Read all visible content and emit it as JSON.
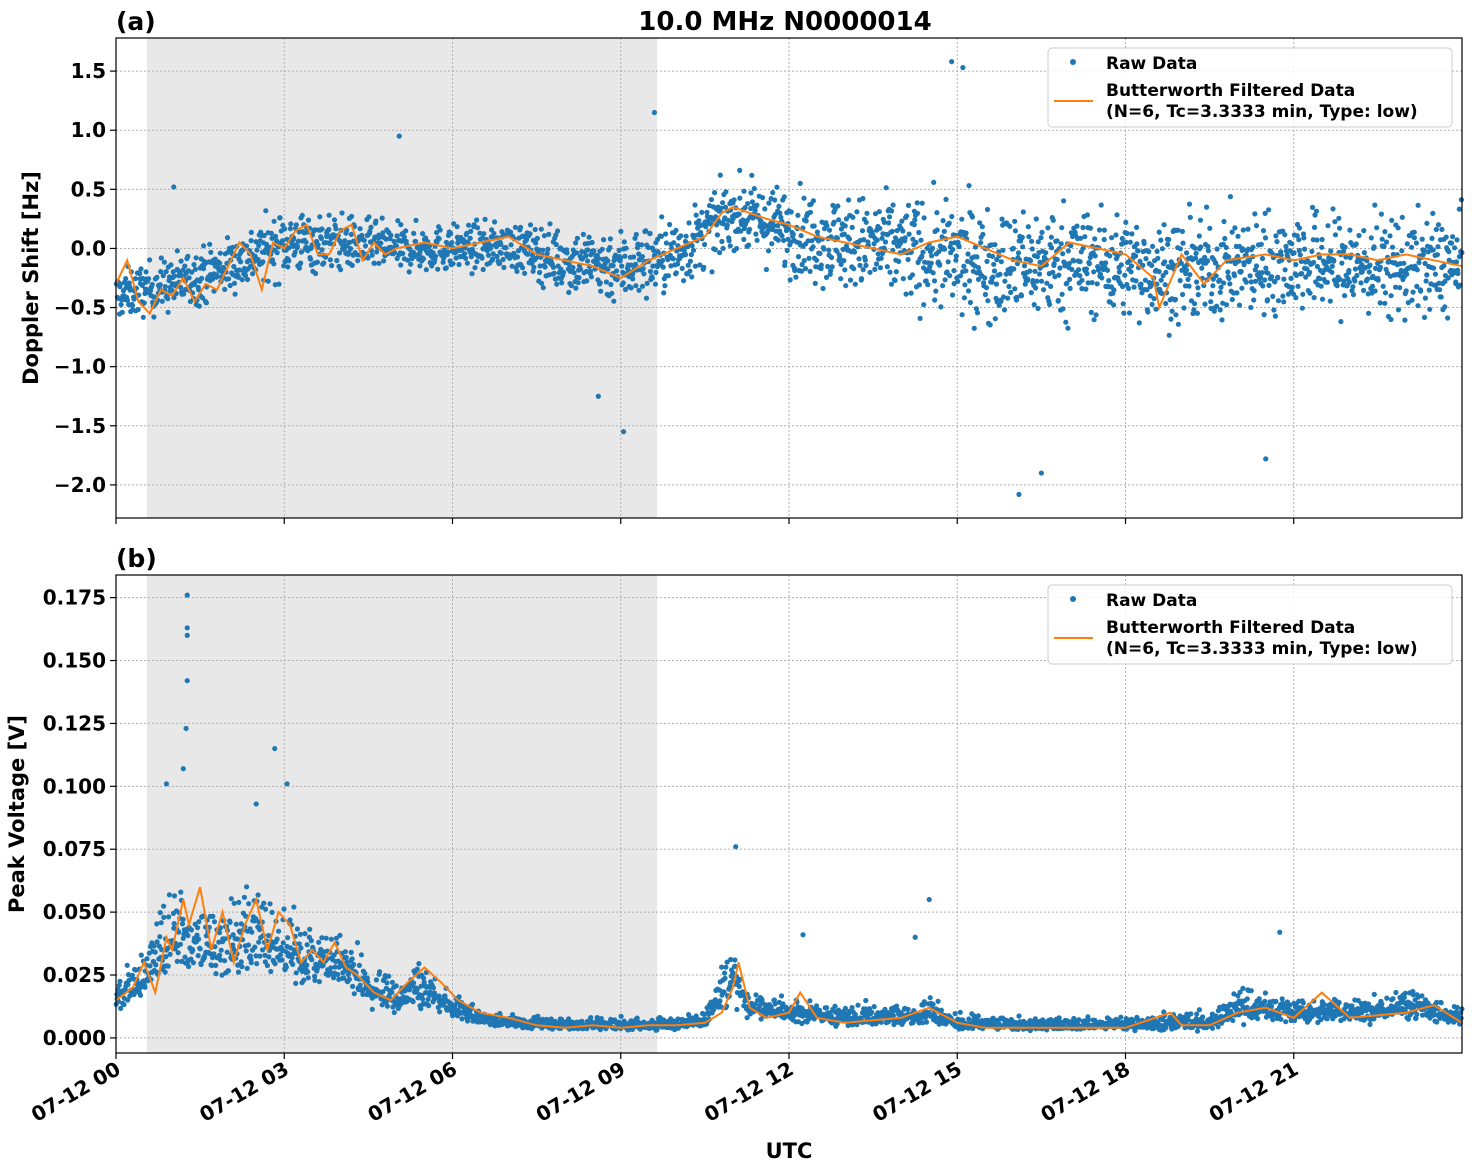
{
  "figure": {
    "title": "10.0 MHz N0000014",
    "xlabel": "UTC",
    "colors": {
      "raw": "#1f77b4",
      "filtered": "#ff7f0e",
      "shade": "#e8e8e8"
    }
  },
  "chart_data": [
    {
      "type": "scatter",
      "panel_label": "(a)",
      "title": "10.0 MHz N0000014",
      "ylabel": "Doppler Shift [Hz]",
      "xlabel": "",
      "xlim": [
        0,
        24
      ],
      "ylim": [
        -2.28,
        1.78
      ],
      "grid": true,
      "legend_placement": "top-right",
      "shaded_x_range": [
        0.55,
        9.65
      ],
      "yticks": [
        1.5,
        1.0,
        0.5,
        0.0,
        -0.5,
        -1.0,
        -1.5,
        -2.0
      ],
      "ytick_labels": [
        "1.5",
        "1.0",
        "0.5",
        "0.0",
        "−0.5",
        "−1.0",
        "−1.5",
        "−2.0"
      ],
      "series": [
        {
          "name": "Raw Data",
          "kind": "scatter",
          "centerline_x": [
            0,
            1,
            2,
            3,
            4,
            5,
            6,
            7,
            8,
            9,
            10,
            11,
            12,
            13,
            14,
            15,
            16,
            17,
            18,
            19,
            20,
            21,
            22,
            23,
            24
          ],
          "centerline_y": [
            -0.4,
            -0.3,
            -0.15,
            0.05,
            0.05,
            0.0,
            0.0,
            0.02,
            -0.1,
            -0.15,
            -0.05,
            0.3,
            0.15,
            0.05,
            0.0,
            -0.1,
            -0.15,
            -0.1,
            -0.15,
            -0.2,
            -0.15,
            -0.1,
            -0.15,
            -0.15,
            -0.15
          ],
          "band_half_width": [
            0.25,
            0.3,
            0.3,
            0.35,
            0.3,
            0.25,
            0.25,
            0.25,
            0.35,
            0.4,
            0.4,
            0.35,
            0.45,
            0.5,
            0.55,
            0.6,
            0.6,
            0.6,
            0.55,
            0.55,
            0.55,
            0.55,
            0.55,
            0.55,
            0.55
          ],
          "outliers": [
            [
              1.03,
              0.52
            ],
            [
              5.05,
              0.95
            ],
            [
              9.6,
              1.15
            ],
            [
              14.9,
              1.58
            ],
            [
              15.1,
              1.53
            ],
            [
              16.1,
              -2.08
            ],
            [
              9.05,
              -1.55
            ],
            [
              8.6,
              -1.25
            ],
            [
              16.5,
              -1.9
            ],
            [
              20.5,
              -1.78
            ]
          ]
        },
        {
          "name": "Butterworth Filtered Data\n(N=6, Tc=3.3333 min, Type: low)",
          "kind": "line",
          "x": [
            0,
            0.2,
            0.4,
            0.6,
            0.8,
            1.0,
            1.2,
            1.4,
            1.6,
            1.8,
            2.0,
            2.2,
            2.4,
            2.6,
            2.8,
            3.0,
            3.2,
            3.4,
            3.6,
            3.8,
            4.0,
            4.2,
            4.4,
            4.6,
            4.8,
            5.0,
            5.5,
            6.0,
            6.5,
            7.0,
            7.5,
            8.0,
            8.5,
            9.0,
            9.5,
            10.0,
            10.5,
            10.8,
            11.0,
            11.3,
            11.6,
            12.0,
            12.5,
            13.0,
            13.5,
            14.0,
            14.5,
            15.0,
            15.5,
            16.0,
            16.5,
            17.0,
            17.5,
            18.0,
            18.5,
            18.6,
            19.0,
            19.4,
            19.8,
            20.5,
            21.0,
            21.5,
            22.0,
            22.5,
            23.0,
            23.5,
            24.0
          ],
          "y": [
            -0.3,
            -0.1,
            -0.45,
            -0.55,
            -0.35,
            -0.4,
            -0.25,
            -0.45,
            -0.3,
            -0.35,
            -0.15,
            0.05,
            -0.05,
            -0.35,
            0.05,
            0.0,
            0.15,
            0.2,
            -0.05,
            -0.05,
            0.15,
            0.2,
            -0.1,
            0.05,
            -0.05,
            0.0,
            0.05,
            0.0,
            0.05,
            0.1,
            -0.05,
            -0.1,
            -0.15,
            -0.25,
            -0.1,
            0.0,
            0.1,
            0.3,
            0.35,
            0.3,
            0.25,
            0.2,
            0.1,
            0.05,
            0.0,
            -0.05,
            0.05,
            0.1,
            0.0,
            -0.1,
            -0.15,
            0.05,
            0.0,
            -0.05,
            -0.25,
            -0.5,
            -0.05,
            -0.3,
            -0.1,
            -0.05,
            -0.1,
            -0.05,
            -0.05,
            -0.1,
            -0.05,
            -0.1,
            -0.15
          ]
        }
      ],
      "legend": [
        "Raw Data",
        "Butterworth Filtered Data",
        "(N=6, Tc=3.3333 min, Type: low)"
      ]
    },
    {
      "type": "scatter",
      "panel_label": "(b)",
      "ylabel": "Peak Voltage [V]",
      "xlabel": "UTC",
      "xlim": [
        0,
        24
      ],
      "ylim": [
        -0.006,
        0.184
      ],
      "grid": true,
      "legend_placement": "top-right",
      "shaded_x_range": [
        0.55,
        9.65
      ],
      "yticks": [
        0.175,
        0.15,
        0.125,
        0.1,
        0.075,
        0.05,
        0.025,
        0.0
      ],
      "ytick_labels": [
        "0.175",
        "0.150",
        "0.125",
        "0.100",
        "0.075",
        "0.050",
        "0.025",
        "0.000"
      ],
      "xticks": [
        0,
        3,
        6,
        9,
        12,
        15,
        18,
        21
      ],
      "xtick_labels": [
        "07-12 00",
        "07-12 03",
        "07-12 06",
        "07-12 09",
        "07-12 12",
        "07-12 15",
        "07-12 18",
        "07-12 21"
      ],
      "series": [
        {
          "name": "Raw Data",
          "kind": "scatter",
          "centerline_x": [
            0,
            0.5,
            1.0,
            1.5,
            2.0,
            2.5,
            3.0,
            3.5,
            4.0,
            4.5,
            5.0,
            5.5,
            6.0,
            6.5,
            7.0,
            8.0,
            9.0,
            10.0,
            10.5,
            11.0,
            11.3,
            12.0,
            13.0,
            14.0,
            14.5,
            15.0,
            16.0,
            17.0,
            18.0,
            19.0,
            19.5,
            20.0,
            21.0,
            22.0,
            23.0,
            24.0
          ],
          "centerline_y": [
            0.015,
            0.025,
            0.04,
            0.035,
            0.035,
            0.04,
            0.035,
            0.03,
            0.03,
            0.02,
            0.015,
            0.02,
            0.012,
            0.008,
            0.006,
            0.005,
            0.005,
            0.005,
            0.007,
            0.025,
            0.012,
            0.01,
            0.008,
            0.008,
            0.01,
            0.006,
            0.005,
            0.005,
            0.005,
            0.006,
            0.006,
            0.012,
            0.01,
            0.01,
            0.012,
            0.008
          ],
          "band_half_width": [
            0.008,
            0.012,
            0.02,
            0.02,
            0.018,
            0.02,
            0.018,
            0.012,
            0.012,
            0.01,
            0.01,
            0.012,
            0.006,
            0.004,
            0.003,
            0.003,
            0.003,
            0.003,
            0.004,
            0.015,
            0.006,
            0.006,
            0.005,
            0.005,
            0.006,
            0.004,
            0.003,
            0.003,
            0.003,
            0.004,
            0.004,
            0.008,
            0.006,
            0.006,
            0.007,
            0.005
          ],
          "outliers": [
            [
              1.27,
              0.176
            ],
            [
              1.27,
              0.163
            ],
            [
              1.27,
              0.16
            ],
            [
              1.27,
              0.142
            ],
            [
              1.25,
              0.123
            ],
            [
              1.2,
              0.107
            ],
            [
              0.9,
              0.101
            ],
            [
              2.83,
              0.115
            ],
            [
              3.05,
              0.101
            ],
            [
              2.5,
              0.093
            ],
            [
              11.05,
              0.076
            ],
            [
              14.5,
              0.055
            ],
            [
              20.75,
              0.042
            ],
            [
              12.25,
              0.041
            ],
            [
              14.25,
              0.04
            ]
          ]
        },
        {
          "name": "Butterworth Filtered Data\n(N=6, Tc=3.3333 min, Type: low)",
          "kind": "line",
          "x": [
            0,
            0.3,
            0.5,
            0.7,
            0.9,
            1.0,
            1.2,
            1.3,
            1.5,
            1.7,
            1.9,
            2.1,
            2.3,
            2.5,
            2.7,
            2.9,
            3.1,
            3.3,
            3.5,
            3.7,
            3.9,
            4.1,
            4.3,
            4.6,
            4.9,
            5.2,
            5.5,
            5.8,
            6.1,
            6.5,
            7.0,
            7.5,
            8.0,
            8.5,
            9.0,
            9.5,
            10.0,
            10.5,
            10.8,
            11.0,
            11.1,
            11.3,
            11.6,
            12.0,
            12.2,
            12.5,
            13.0,
            13.5,
            14.0,
            14.5,
            15.0,
            15.5,
            16.0,
            17.0,
            18.0,
            18.8,
            19.0,
            19.5,
            20.0,
            20.5,
            21.0,
            21.5,
            22.0,
            22.5,
            23.0,
            23.5,
            24.0
          ],
          "y": [
            0.015,
            0.02,
            0.03,
            0.018,
            0.04,
            0.035,
            0.055,
            0.045,
            0.06,
            0.035,
            0.05,
            0.03,
            0.045,
            0.055,
            0.035,
            0.05,
            0.045,
            0.03,
            0.035,
            0.03,
            0.038,
            0.028,
            0.025,
            0.018,
            0.015,
            0.022,
            0.028,
            0.022,
            0.015,
            0.01,
            0.008,
            0.005,
            0.004,
            0.005,
            0.004,
            0.005,
            0.005,
            0.006,
            0.01,
            0.02,
            0.03,
            0.012,
            0.008,
            0.01,
            0.018,
            0.008,
            0.006,
            0.007,
            0.008,
            0.012,
            0.006,
            0.004,
            0.004,
            0.004,
            0.004,
            0.01,
            0.005,
            0.005,
            0.01,
            0.012,
            0.008,
            0.018,
            0.008,
            0.009,
            0.01,
            0.013,
            0.006
          ]
        }
      ],
      "legend": [
        "Raw Data",
        "Butterworth Filtered Data",
        "(N=6, Tc=3.3333 min, Type: low)"
      ]
    }
  ]
}
